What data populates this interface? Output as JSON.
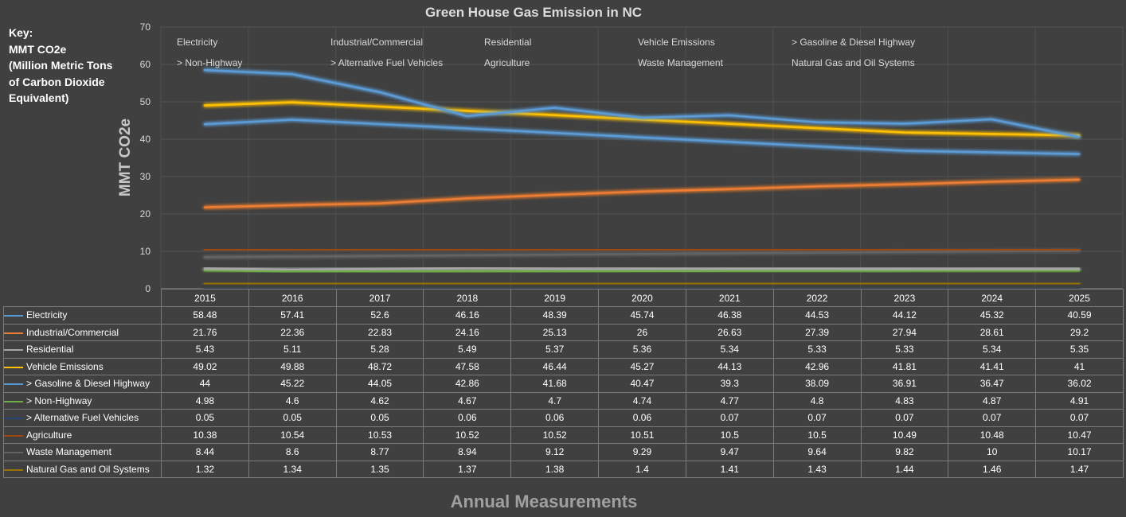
{
  "key": {
    "lines": [
      "Key:",
      "MMT CO2e",
      "(Million Metric Tons",
      "of Carbon Dioxide",
      "Equivalent)"
    ]
  },
  "chart_data": {
    "type": "line",
    "title": "Green House Gas Emission in NC",
    "xlabel": "Annual Measurements",
    "ylabel": "MMT CO2e",
    "ylim": [
      0,
      70
    ],
    "yticks": [
      0,
      10,
      20,
      30,
      40,
      50,
      60,
      70
    ],
    "grid": true,
    "legend": "top",
    "categories": [
      "2015",
      "2016",
      "2017",
      "2018",
      "2019",
      "2020",
      "2021",
      "2022",
      "2023",
      "2024",
      "2025"
    ],
    "series": [
      {
        "name": "Electricity",
        "color": "#5b9bd5",
        "values": [
          58.48,
          57.41,
          52.6,
          46.16,
          48.39,
          45.74,
          46.38,
          44.53,
          44.12,
          45.32,
          40.59
        ]
      },
      {
        "name": "Industrial/Commercial",
        "color": "#ed7d31",
        "values": [
          21.76,
          22.36,
          22.83,
          24.16,
          25.13,
          26,
          26.63,
          27.39,
          27.94,
          28.61,
          29.2
        ]
      },
      {
        "name": "Residential",
        "color": "#a5a5a5",
        "values": [
          5.43,
          5.11,
          5.28,
          5.49,
          5.37,
          5.36,
          5.34,
          5.33,
          5.33,
          5.34,
          5.35
        ]
      },
      {
        "name": "Vehicle Emissions",
        "color": "#ffc000",
        "values": [
          49.02,
          49.88,
          48.72,
          47.58,
          46.44,
          45.27,
          44.13,
          42.96,
          41.81,
          41.41,
          41
        ]
      },
      {
        "name": "> Gasoline & Diesel Highway",
        "color": "#5b9bd5",
        "values": [
          44,
          45.22,
          44.05,
          42.86,
          41.68,
          40.47,
          39.3,
          38.09,
          36.91,
          36.47,
          36.02
        ]
      },
      {
        "name": "> Non-Highway",
        "color": "#70ad47",
        "values": [
          4.98,
          4.6,
          4.62,
          4.67,
          4.7,
          4.74,
          4.77,
          4.8,
          4.83,
          4.87,
          4.91
        ]
      },
      {
        "name": "> Alternative Fuel Vehicles",
        "color": "#264478",
        "values": [
          0.05,
          0.05,
          0.05,
          0.06,
          0.06,
          0.06,
          0.07,
          0.07,
          0.07,
          0.07,
          0.07
        ]
      },
      {
        "name": "Agriculture",
        "color": "#9e480e",
        "values": [
          10.38,
          10.54,
          10.53,
          10.52,
          10.52,
          10.51,
          10.5,
          10.5,
          10.49,
          10.48,
          10.47
        ]
      },
      {
        "name": "Waste Management",
        "color": "#636363",
        "values": [
          8.44,
          8.6,
          8.77,
          8.94,
          9.12,
          9.29,
          9.47,
          9.64,
          9.82,
          10,
          10.17
        ]
      },
      {
        "name": "Natural Gas and Oil Systems",
        "color": "#997300",
        "values": [
          1.32,
          1.34,
          1.35,
          1.37,
          1.38,
          1.4,
          1.41,
          1.43,
          1.44,
          1.46,
          1.47
        ]
      }
    ]
  }
}
